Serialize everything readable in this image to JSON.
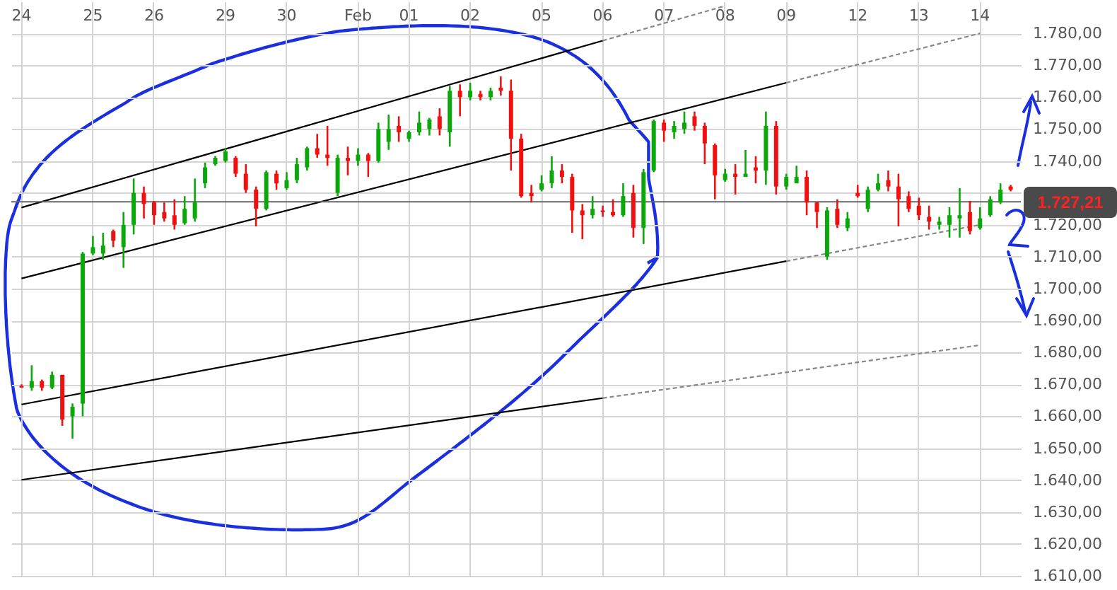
{
  "chart_data": {
    "type": "candlestick",
    "categories": [
      "24",
      null,
      null,
      null,
      null,
      null,
      null,
      "25",
      null,
      null,
      null,
      null,
      null,
      "26",
      null,
      null,
      null,
      null,
      null,
      null,
      "29",
      null,
      null,
      null,
      null,
      null,
      "30",
      null,
      null,
      null,
      null,
      null,
      null,
      "Feb",
      null,
      null,
      null,
      null,
      "01",
      null,
      null,
      null,
      null,
      null,
      "02",
      null,
      null,
      null,
      null,
      null,
      null,
      "05",
      null,
      null,
      null,
      null,
      null,
      "06",
      null,
      null,
      null,
      null,
      null,
      "07",
      null,
      null,
      null,
      null,
      null,
      "08",
      null,
      null,
      null,
      null,
      null,
      "09",
      null,
      null,
      null,
      null,
      null,
      null,
      "12",
      null,
      null,
      null,
      null,
      null,
      "13",
      null,
      null,
      null,
      null,
      null,
      "14",
      null,
      null,
      null
    ],
    "ohlc": [
      [
        1669.5,
        1670,
        1669,
        1669
      ],
      [
        1669,
        1676,
        1668,
        1671
      ],
      [
        1671,
        1671.5,
        1668,
        1669
      ],
      [
        1669,
        1674,
        1668.5,
        1673
      ],
      [
        1673,
        1673,
        1657,
        1659
      ],
      [
        1660,
        1664,
        1653,
        1663
      ],
      [
        1664,
        1711.5,
        1660,
        1711
      ],
      [
        1711,
        1716.5,
        1710.5,
        1713
      ],
      [
        1711,
        1717.5,
        1709,
        1713.5
      ],
      [
        1718,
        1718.5,
        1713,
        1715
      ],
      [
        1713,
        1724,
        1706.5,
        1720
      ],
      [
        1720,
        1734.5,
        1717,
        1730
      ],
      [
        1730,
        1732,
        1722,
        1726.5
      ],
      [
        1727,
        1727.5,
        1720,
        1723
      ],
      [
        1724,
        1727,
        1721,
        1722
      ],
      [
        1723,
        1728,
        1718.5,
        1720
      ],
      [
        1720.5,
        1729,
        1720,
        1725
      ],
      [
        1722,
        1734.5,
        1721,
        1727
      ],
      [
        1733,
        1739.5,
        1731.5,
        1738
      ],
      [
        1739,
        1741.5,
        1738.5,
        1741
      ],
      [
        1740,
        1744,
        1739.5,
        1743
      ],
      [
        1741,
        1741.5,
        1735,
        1736
      ],
      [
        1736,
        1739,
        1730,
        1731
      ],
      [
        1731,
        1732,
        1719.5,
        1725
      ],
      [
        1725,
        1737,
        1724.5,
        1736.5
      ],
      [
        1736,
        1737,
        1731,
        1733
      ],
      [
        1731.5,
        1736.5,
        1731,
        1734
      ],
      [
        1734,
        1741,
        1733,
        1739
      ],
      [
        1738,
        1744.5,
        1737,
        1744
      ],
      [
        1744,
        1748.5,
        1741,
        1742
      ],
      [
        1742,
        1751,
        1738.5,
        1741
      ],
      [
        1730,
        1742,
        1729,
        1741
      ],
      [
        1741,
        1744.5,
        1735.5,
        1740
      ],
      [
        1740,
        1744,
        1738.5,
        1742
      ],
      [
        1742,
        1742.5,
        1735,
        1740
      ],
      [
        1740,
        1752,
        1739.5,
        1750
      ],
      [
        1746,
        1754.5,
        1743.5,
        1750
      ],
      [
        1751,
        1754,
        1746,
        1749
      ],
      [
        1747,
        1749.5,
        1746,
        1749
      ],
      [
        1749,
        1755.5,
        1748,
        1752
      ],
      [
        1750,
        1753.5,
        1748,
        1753
      ],
      [
        1754,
        1756.5,
        1748,
        1750
      ],
      [
        1749,
        1763.5,
        1744.5,
        1762
      ],
      [
        1762,
        1764,
        1754,
        1760
      ],
      [
        1760,
        1764.5,
        1759,
        1762
      ],
      [
        1761,
        1762,
        1759,
        1760
      ],
      [
        1760,
        1763,
        1759,
        1762
      ],
      [
        1763,
        1766.5,
        1760.5,
        1762
      ],
      [
        1762,
        1765.5,
        1737,
        1747
      ],
      [
        1747,
        1748.5,
        1728.5,
        1729
      ],
      [
        1730,
        1732.5,
        1727,
        1729
      ],
      [
        1731,
        1735.5,
        1730.5,
        1733
      ],
      [
        1733,
        1741.5,
        1731.5,
        1737
      ],
      [
        1737,
        1739,
        1733,
        1735
      ],
      [
        1735,
        1736,
        1717.5,
        1724.5
      ],
      [
        1724.5,
        1726.5,
        1715.5,
        1723
      ],
      [
        1723,
        1729,
        1722,
        1725
      ],
      [
        1724.5,
        1726,
        1722.5,
        1724
      ],
      [
        1724,
        1728,
        1722.5,
        1723
      ],
      [
        1723,
        1733,
        1722.5,
        1729
      ],
      [
        1730,
        1732.5,
        1716,
        1719
      ],
      [
        1719,
        1737.5,
        1714,
        1736.5
      ],
      [
        1737,
        1753,
        1736.5,
        1752.5
      ],
      [
        1752,
        1753,
        1746,
        1749.5
      ],
      [
        1749,
        1752.5,
        1747,
        1751
      ],
      [
        1750,
        1755.5,
        1748.5,
        1752
      ],
      [
        1754,
        1755.5,
        1749.5,
        1751
      ],
      [
        1751,
        1752,
        1739,
        1745.5
      ],
      [
        1745,
        1745.5,
        1728,
        1735.5
      ],
      [
        1734,
        1737.5,
        1733.5,
        1736
      ],
      [
        1736,
        1739,
        1729.5,
        1735
      ],
      [
        1735,
        1743.5,
        1735,
        1736
      ],
      [
        1738,
        1741.5,
        1733,
        1737
      ],
      [
        1737,
        1755.5,
        1732.5,
        1751
      ],
      [
        1751,
        1752.5,
        1729.5,
        1732
      ],
      [
        1732,
        1736,
        1731,
        1735
      ],
      [
        1733,
        1738.5,
        1733,
        1735
      ],
      [
        1735,
        1737,
        1723,
        1727
      ],
      [
        1727,
        1727,
        1719,
        1724
      ],
      [
        1710,
        1725.5,
        1709,
        1724.5
      ],
      [
        1725,
        1728,
        1719,
        1720
      ],
      [
        1719,
        1724,
        1718,
        1722
      ],
      [
        1730,
        1732.5,
        1728.5,
        1729
      ],
      [
        1725,
        1732,
        1724,
        1731
      ],
      [
        1731,
        1736,
        1730.5,
        1733
      ],
      [
        1734,
        1737,
        1730.5,
        1732
      ],
      [
        1732,
        1736,
        1719.5,
        1728
      ],
      [
        1729,
        1730.5,
        1724,
        1725
      ],
      [
        1726,
        1728.5,
        1721.5,
        1723
      ],
      [
        1722.5,
        1726,
        1718.5,
        1721
      ],
      [
        1720,
        1722.5,
        1718.5,
        1721
      ],
      [
        1720,
        1725.5,
        1716,
        1723
      ],
      [
        1722,
        1731.5,
        1716,
        1723
      ],
      [
        1724,
        1727.5,
        1717,
        1718
      ],
      [
        1719,
        1725.5,
        1718.5,
        1722
      ],
      [
        1723,
        1729,
        1722.5,
        1728
      ],
      [
        1727,
        1733,
        1726.5,
        1731
      ],
      [
        1732,
        1732.5,
        1730.5,
        1731
      ]
    ],
    "series": [
      {
        "type": "line",
        "x": [
          "24",
          "06"
        ],
        "values": [
          1725.4,
          1777.7
        ],
        "color": "#000000",
        "line_style": "solid"
      },
      {
        "type": "line",
        "x": [
          "06",
          "08"
        ],
        "values": [
          1777.7,
          1788.6
        ],
        "color": "#888888",
        "line_style": "dashed"
      },
      {
        "type": "line",
        "x": [
          "24",
          "09"
        ],
        "values": [
          1703.2,
          1764.5
        ],
        "color": "#000000",
        "line_style": "solid"
      },
      {
        "type": "line",
        "x": [
          "09",
          "14"
        ],
        "values": [
          1764.5,
          1780.0
        ],
        "color": "#888888",
        "line_style": "dashed"
      },
      {
        "type": "line",
        "x": [
          "24",
          "09"
        ],
        "values": [
          1663.7,
          1708.6
        ],
        "color": "#000000",
        "line_style": "solid"
      },
      {
        "type": "line",
        "x": [
          "09",
          "14"
        ],
        "values": [
          1708.6,
          1720.0
        ],
        "color": "#888888",
        "line_style": "dashed"
      },
      {
        "type": "line",
        "x": [
          "24",
          "06"
        ],
        "values": [
          1640.1,
          1665.7
        ],
        "color": "#000000",
        "line_style": "solid"
      },
      {
        "type": "line",
        "x": [
          "06",
          "14"
        ],
        "values": [
          1665.7,
          1682.3
        ],
        "color": "#888888",
        "line_style": "dashed"
      }
    ],
    "ref_lines": [
      {
        "axis": "y",
        "value": 1727.21,
        "label": "1.727,21",
        "color": "#666666"
      }
    ],
    "ylim": [
      1610,
      1790
    ],
    "yticks": [
      {
        "value": 1610,
        "label": "1.610,00"
      },
      {
        "value": 1620,
        "label": "1.620,00"
      },
      {
        "value": 1630,
        "label": "1.630,00"
      },
      {
        "value": 1640,
        "label": "1.640,00"
      },
      {
        "value": 1650,
        "label": "1.650,00"
      },
      {
        "value": 1660,
        "label": "1.660,00"
      },
      {
        "value": 1670,
        "label": "1.670,00"
      },
      {
        "value": 1680,
        "label": "1.680,00"
      },
      {
        "value": 1690,
        "label": "1.690,00"
      },
      {
        "value": 1700,
        "label": "1.700,00"
      },
      {
        "value": 1710,
        "label": "1.710,00"
      },
      {
        "value": 1720,
        "label": "1.720,00"
      },
      {
        "value": 1730,
        "label": null
      },
      {
        "value": 1740,
        "label": "1.740,00"
      },
      {
        "value": 1750,
        "label": "1.750,00"
      },
      {
        "value": 1760,
        "label": "1.760,00"
      },
      {
        "value": 1770,
        "label": "1.770,00"
      },
      {
        "value": 1780,
        "label": "1.780,00"
      }
    ],
    "grid": true
  }
}
